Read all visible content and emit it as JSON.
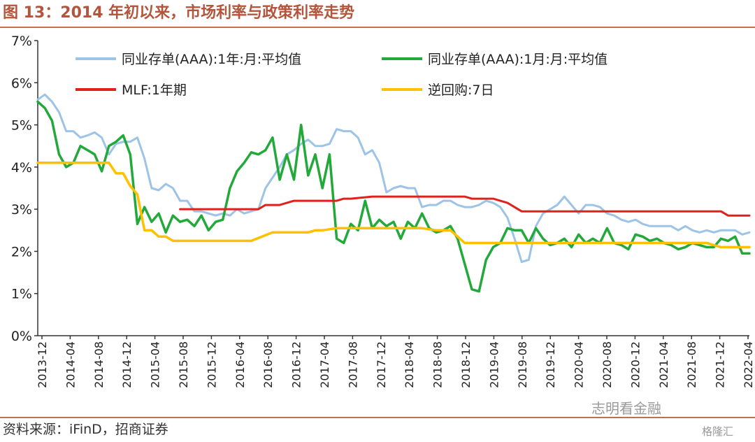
{
  "title": "图 13：2014 年初以来，市场利率与政策利率走势",
  "source": "资料来源：iFinD，招商证券",
  "watermark": "志明看金融",
  "watermark2": "格隆汇",
  "chart_data": {
    "type": "line",
    "ylim": [
      0,
      7
    ],
    "yticks": [
      "0%",
      "1%",
      "2%",
      "3%",
      "4%",
      "5%",
      "6%",
      "7%"
    ],
    "x_ticks": [
      "2013-12",
      "2014-04",
      "2014-08",
      "2014-12",
      "2015-04",
      "2015-08",
      "2015-12",
      "2016-04",
      "2016-08",
      "2016-12",
      "2017-04",
      "2017-08",
      "2017-12",
      "2018-04",
      "2018-08",
      "2018-12",
      "2019-04",
      "2019-08",
      "2019-12",
      "2020-04",
      "2020-08",
      "2020-12",
      "2021-04",
      "2021-08",
      "2021-12",
      "2022-04"
    ],
    "x_range": [
      0,
      100
    ],
    "legend": {
      "rows": [
        [
          "同业存单(AAA):1年:月:平均值",
          "同业存单(AAA):1月:月:平均值"
        ],
        [
          "MLF:1年期",
          "逆回购:7日"
        ]
      ]
    },
    "series": [
      {
        "name": "同业存单(AAA):1年:月:平均值",
        "color": "#9dc3e6",
        "width": 3,
        "x": [
          0,
          1,
          2,
          3,
          4,
          5,
          6,
          7,
          8,
          9,
          10,
          11,
          12,
          13,
          14,
          15,
          16,
          17,
          18,
          19,
          20,
          21,
          22,
          23,
          24,
          25,
          26,
          27,
          28,
          29,
          30,
          31,
          32,
          33,
          34,
          35,
          36,
          37,
          38,
          39,
          40,
          41,
          42,
          43,
          44,
          45,
          46,
          47,
          48,
          49,
          50,
          51,
          52,
          53,
          54,
          55,
          56,
          57,
          58,
          59,
          60,
          61,
          62,
          63,
          64,
          65,
          66,
          67,
          68,
          69,
          70,
          71,
          72,
          73,
          74,
          75,
          76,
          77,
          78,
          79,
          80,
          81,
          82,
          83,
          84,
          85,
          86,
          87,
          88,
          89,
          90,
          91,
          92,
          93,
          94,
          95,
          96,
          97,
          98,
          99,
          100
        ],
        "y": [
          5.6,
          5.72,
          5.55,
          5.3,
          4.85,
          4.85,
          4.7,
          4.75,
          4.82,
          4.7,
          4.3,
          4.55,
          4.6,
          4.6,
          4.7,
          4.2,
          3.5,
          3.45,
          3.6,
          3.5,
          3.2,
          3.2,
          2.95,
          2.95,
          2.9,
          2.85,
          2.9,
          2.85,
          3.0,
          2.9,
          2.95,
          3.0,
          3.5,
          3.75,
          4.0,
          4.3,
          4.4,
          4.55,
          4.65,
          4.5,
          4.5,
          4.55,
          4.9,
          4.85,
          4.85,
          4.7,
          4.3,
          4.4,
          4.1,
          3.4,
          3.5,
          3.55,
          3.5,
          3.5,
          3.05,
          3.1,
          3.1,
          3.2,
          3.2,
          3.1,
          3.05,
          3.05,
          3.1,
          3.2,
          3.15,
          3.05,
          2.8,
          2.3,
          1.75,
          1.8,
          2.6,
          2.9,
          3.0,
          3.1,
          3.3,
          3.1,
          2.9,
          3.1,
          3.1,
          3.05,
          2.9,
          2.85,
          2.75,
          2.7,
          2.75,
          2.65,
          2.6,
          2.6,
          2.6,
          2.6,
          2.5,
          2.6,
          2.5,
          2.45,
          2.5,
          2.45,
          2.5,
          2.5,
          2.5,
          2.4,
          2.45
        ]
      },
      {
        "name": "同业存单(AAA):1月:月:平均值",
        "color": "#22a93a",
        "width": 3.5,
        "x": [
          0,
          1,
          2,
          3,
          4,
          5,
          6,
          7,
          8,
          9,
          10,
          11,
          12,
          13,
          14,
          15,
          16,
          17,
          18,
          19,
          20,
          21,
          22,
          23,
          24,
          25,
          26,
          27,
          28,
          29,
          30,
          31,
          32,
          33,
          34,
          35,
          36,
          37,
          38,
          39,
          40,
          41,
          42,
          43,
          44,
          45,
          46,
          47,
          48,
          49,
          50,
          51,
          52,
          53,
          54,
          55,
          56,
          57,
          58,
          59,
          60,
          61,
          62,
          63,
          64,
          65,
          66,
          67,
          68,
          69,
          70,
          71,
          72,
          73,
          74,
          75,
          76,
          77,
          78,
          79,
          80,
          81,
          82,
          83,
          84,
          85,
          86,
          87,
          88,
          89,
          90,
          91,
          92,
          93,
          94,
          95,
          96,
          97,
          98,
          99,
          100
        ],
        "y": [
          5.55,
          5.4,
          5.1,
          4.3,
          4.0,
          4.1,
          4.5,
          4.4,
          4.3,
          3.9,
          4.5,
          4.6,
          4.75,
          4.3,
          2.65,
          3.05,
          2.7,
          2.9,
          2.45,
          2.85,
          2.7,
          2.75,
          2.6,
          2.85,
          2.5,
          2.7,
          2.75,
          3.5,
          3.9,
          4.1,
          4.35,
          4.3,
          4.4,
          4.7,
          3.7,
          4.3,
          3.7,
          5.0,
          3.8,
          4.3,
          3.5,
          4.3,
          2.3,
          2.2,
          2.65,
          2.5,
          3.2,
          2.55,
          2.75,
          2.6,
          2.7,
          2.3,
          2.7,
          2.55,
          2.9,
          2.55,
          2.45,
          2.5,
          2.6,
          2.3,
          1.7,
          1.1,
          1.05,
          1.8,
          2.1,
          2.2,
          2.55,
          2.5,
          2.5,
          2.2,
          2.55,
          2.3,
          2.15,
          2.2,
          2.3,
          2.1,
          2.4,
          2.2,
          2.3,
          2.2,
          2.55,
          2.2,
          2.15,
          2.05,
          2.4,
          2.35,
          2.25,
          2.3,
          2.2,
          2.15,
          2.05,
          2.1,
          2.2,
          2.15,
          2.1,
          2.1,
          2.3,
          2.25,
          2.35,
          1.95,
          1.95
        ]
      },
      {
        "name": "MLF:1年期",
        "color": "#e0201b",
        "width": 3,
        "x": [
          20,
          23,
          25,
          29,
          31,
          32,
          34,
          36,
          38,
          40,
          42,
          43,
          44,
          47,
          50,
          52,
          56,
          58,
          60,
          61,
          62,
          63,
          64,
          66,
          68,
          69,
          70,
          72,
          74,
          76,
          78,
          80,
          82,
          84,
          86,
          88,
          90,
          92,
          94,
          96,
          97,
          98,
          100
        ],
        "y": [
          3.0,
          3.0,
          3.0,
          3.0,
          3.0,
          3.1,
          3.1,
          3.2,
          3.2,
          3.2,
          3.2,
          3.25,
          3.25,
          3.3,
          3.3,
          3.3,
          3.3,
          3.3,
          3.3,
          3.25,
          3.25,
          3.25,
          3.25,
          3.15,
          2.95,
          2.95,
          2.95,
          2.95,
          2.95,
          2.95,
          2.95,
          2.95,
          2.95,
          2.95,
          2.95,
          2.95,
          2.95,
          2.95,
          2.95,
          2.95,
          2.85,
          2.85,
          2.85
        ]
      },
      {
        "name": "逆回购:7日",
        "color": "#ffc000",
        "width": 3.5,
        "x": [
          0,
          6,
          10,
          11,
          12,
          13,
          14,
          15,
          16,
          17,
          18,
          19,
          20,
          22,
          24,
          26,
          28,
          29,
          30,
          33,
          35,
          37,
          38,
          39,
          40,
          42,
          44,
          46,
          48,
          50,
          52,
          54,
          56,
          58,
          60,
          62,
          64,
          66,
          68,
          70,
          72,
          74,
          76,
          78,
          80,
          82,
          84,
          86,
          88,
          90,
          92,
          94,
          96,
          98,
          100
        ],
        "y": [
          4.1,
          4.1,
          4.1,
          3.85,
          3.85,
          3.55,
          3.35,
          2.5,
          2.5,
          2.35,
          2.35,
          2.25,
          2.25,
          2.25,
          2.25,
          2.25,
          2.25,
          2.25,
          2.25,
          2.45,
          2.45,
          2.45,
          2.45,
          2.5,
          2.5,
          2.55,
          2.55,
          2.55,
          2.55,
          2.55,
          2.55,
          2.55,
          2.5,
          2.5,
          2.2,
          2.2,
          2.2,
          2.2,
          2.2,
          2.2,
          2.2,
          2.2,
          2.2,
          2.2,
          2.2,
          2.2,
          2.2,
          2.2,
          2.2,
          2.2,
          2.2,
          2.2,
          2.1,
          2.1,
          2.1
        ]
      }
    ]
  }
}
